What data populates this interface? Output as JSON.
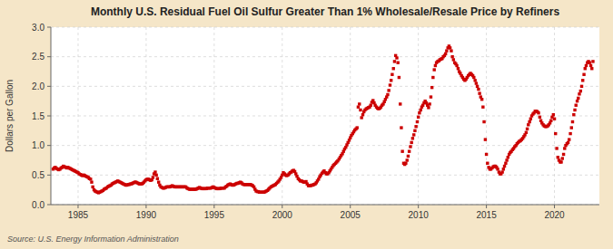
{
  "chart_data": {
    "type": "scatter",
    "title": "Monthly U.S. Residual Fuel Oil Sulfur Greater Than 1% Wholesale/Resale Price by Refiners",
    "ylabel": "Dollars per Gallon",
    "annotation": "Source: U.S. Energy Information Administration",
    "color": "#CC0000",
    "marker": "square",
    "grid": true,
    "xlim": [
      1983.0,
      2023.3
    ],
    "xticks": [
      1985,
      1990,
      1995,
      2000,
      2005,
      2010,
      2015,
      2020
    ],
    "ylim": [
      0.0,
      3.0
    ],
    "yticks": [
      {
        "value": 0.0,
        "label": "0.0"
      },
      0.5,
      {
        "value": 1.0,
        "label": "1.0"
      },
      1.5,
      {
        "value": 2.0,
        "label": "2.0"
      },
      2.5,
      {
        "value": 3.0,
        "label": "3.0"
      }
    ],
    "x": [
      1983.17,
      1983.25,
      1983.33,
      1983.42,
      1983.5,
      1983.58,
      1983.67,
      1983.75,
      1983.83,
      1983.92,
      1984.0,
      1984.08,
      1984.17,
      1984.25,
      1984.33,
      1984.42,
      1984.5,
      1984.58,
      1984.67,
      1984.75,
      1984.83,
      1984.92,
      1985.0,
      1985.08,
      1985.17,
      1985.25,
      1985.33,
      1985.42,
      1985.5,
      1985.58,
      1985.67,
      1985.75,
      1985.83,
      1985.92,
      1986.0,
      1986.08,
      1986.17,
      1986.25,
      1986.33,
      1986.42,
      1986.5,
      1986.58,
      1986.67,
      1986.75,
      1986.83,
      1986.92,
      1987.0,
      1987.08,
      1987.17,
      1987.25,
      1987.33,
      1987.42,
      1987.5,
      1987.58,
      1987.67,
      1987.75,
      1987.83,
      1987.92,
      1988.0,
      1988.08,
      1988.17,
      1988.25,
      1988.33,
      1988.42,
      1988.5,
      1988.58,
      1988.67,
      1988.75,
      1988.83,
      1988.92,
      1989.0,
      1989.08,
      1989.17,
      1989.25,
      1989.33,
      1989.42,
      1989.5,
      1989.58,
      1989.67,
      1989.75,
      1989.83,
      1989.92,
      1990.0,
      1990.08,
      1990.17,
      1990.25,
      1990.33,
      1990.42,
      1990.5,
      1990.58,
      1990.67,
      1990.75,
      1990.83,
      1990.92,
      1991.0,
      1991.08,
      1991.17,
      1991.25,
      1991.33,
      1991.42,
      1991.5,
      1991.58,
      1991.67,
      1991.75,
      1991.83,
      1991.92,
      1992.0,
      1992.08,
      1992.17,
      1992.25,
      1992.33,
      1992.42,
      1992.5,
      1992.58,
      1992.67,
      1992.75,
      1992.83,
      1992.92,
      1993.0,
      1993.08,
      1993.17,
      1993.25,
      1993.33,
      1993.42,
      1993.5,
      1993.58,
      1993.67,
      1993.75,
      1993.83,
      1993.92,
      1994.0,
      1994.08,
      1994.17,
      1994.25,
      1994.33,
      1994.42,
      1994.5,
      1994.58,
      1994.67,
      1994.75,
      1994.83,
      1994.92,
      1995.0,
      1995.08,
      1995.17,
      1995.25,
      1995.33,
      1995.42,
      1995.5,
      1995.58,
      1995.67,
      1995.75,
      1995.83,
      1995.92,
      1996.0,
      1996.08,
      1996.17,
      1996.25,
      1996.33,
      1996.42,
      1996.5,
      1996.58,
      1996.67,
      1996.75,
      1996.83,
      1996.92,
      1997.0,
      1997.08,
      1997.17,
      1997.25,
      1997.33,
      1997.42,
      1997.5,
      1997.58,
      1997.67,
      1997.75,
      1997.83,
      1997.92,
      1998.0,
      1998.08,
      1998.17,
      1998.25,
      1998.33,
      1998.42,
      1998.5,
      1998.58,
      1998.67,
      1998.75,
      1998.83,
      1998.92,
      1999.0,
      1999.08,
      1999.17,
      1999.25,
      1999.33,
      1999.42,
      1999.5,
      1999.58,
      1999.67,
      1999.75,
      1999.83,
      1999.92,
      2000.0,
      2000.08,
      2000.17,
      2000.25,
      2000.33,
      2000.42,
      2000.5,
      2000.58,
      2000.67,
      2000.75,
      2000.83,
      2000.92,
      2001.0,
      2001.08,
      2001.17,
      2001.25,
      2001.33,
      2001.42,
      2001.5,
      2001.58,
      2001.67,
      2001.75,
      2001.83,
      2001.92,
      2002.0,
      2002.08,
      2002.17,
      2002.25,
      2002.33,
      2002.42,
      2002.5,
      2002.58,
      2002.67,
      2002.75,
      2002.83,
      2002.92,
      2003.0,
      2003.08,
      2003.17,
      2003.25,
      2003.33,
      2003.42,
      2003.5,
      2003.58,
      2003.67,
      2003.75,
      2003.83,
      2003.92,
      2004.0,
      2004.08,
      2004.17,
      2004.25,
      2004.33,
      2004.42,
      2004.5,
      2004.58,
      2004.67,
      2004.75,
      2004.83,
      2004.92,
      2005.0,
      2005.08,
      2005.17,
      2005.25,
      2005.33,
      2005.42,
      2005.5,
      2005.58,
      2005.67,
      2005.75,
      2005.83,
      2005.92,
      2006.0,
      2006.08,
      2006.17,
      2006.25,
      2006.33,
      2006.42,
      2006.5,
      2006.58,
      2006.67,
      2006.75,
      2006.83,
      2006.92,
      2007.0,
      2007.08,
      2007.17,
      2007.25,
      2007.33,
      2007.42,
      2007.5,
      2007.58,
      2007.67,
      2007.75,
      2007.83,
      2007.92,
      2008.0,
      2008.08,
      2008.17,
      2008.25,
      2008.33,
      2008.42,
      2008.5,
      2008.58,
      2008.67,
      2008.75,
      2008.83,
      2008.92,
      2009.0,
      2009.08,
      2009.17,
      2009.25,
      2009.33,
      2009.42,
      2009.5,
      2009.58,
      2009.67,
      2009.75,
      2009.83,
      2009.92,
      2010.0,
      2010.08,
      2010.17,
      2010.25,
      2010.33,
      2010.42,
      2010.5,
      2010.58,
      2010.67,
      2010.75,
      2010.83,
      2010.92,
      2011.0,
      2011.08,
      2011.17,
      2011.25,
      2011.33,
      2011.42,
      2011.5,
      2011.58,
      2011.67,
      2011.75,
      2011.83,
      2011.92,
      2012.0,
      2012.08,
      2012.17,
      2012.25,
      2012.33,
      2012.42,
      2012.5,
      2012.58,
      2012.67,
      2012.75,
      2012.83,
      2012.92,
      2013.0,
      2013.08,
      2013.17,
      2013.25,
      2013.33,
      2013.42,
      2013.5,
      2013.58,
      2013.67,
      2013.75,
      2013.83,
      2013.92,
      2014.0,
      2014.08,
      2014.17,
      2014.25,
      2014.33,
      2014.42,
      2014.5,
      2014.58,
      2014.67,
      2014.75,
      2014.83,
      2014.92,
      2015.0,
      2015.08,
      2015.17,
      2015.25,
      2015.33,
      2015.42,
      2015.5,
      2015.58,
      2015.67,
      2015.75,
      2015.83,
      2015.92,
      2016.0,
      2016.08,
      2016.17,
      2016.25,
      2016.33,
      2016.42,
      2016.5,
      2016.58,
      2016.67,
      2016.75,
      2016.83,
      2016.92,
      2017.0,
      2017.08,
      2017.17,
      2017.25,
      2017.33,
      2017.42,
      2017.5,
      2017.58,
      2017.67,
      2017.75,
      2017.83,
      2017.92,
      2018.0,
      2018.08,
      2018.17,
      2018.25,
      2018.33,
      2018.42,
      2018.5,
      2018.58,
      2018.67,
      2018.75,
      2018.83,
      2018.92,
      2019.0,
      2019.08,
      2019.17,
      2019.25,
      2019.33,
      2019.42,
      2019.5,
      2019.58,
      2019.67,
      2019.75,
      2019.83,
      2019.92,
      2020.0,
      2020.08,
      2020.17,
      2020.25,
      2020.33,
      2020.42,
      2020.5,
      2020.58,
      2020.67,
      2020.75,
      2020.83,
      2020.92,
      2021.0,
      2021.08,
      2021.17,
      2021.25,
      2021.33,
      2021.42,
      2021.5,
      2021.58,
      2021.67,
      2021.75,
      2021.83,
      2021.92,
      2022.0,
      2022.08,
      2022.17,
      2022.25,
      2022.33,
      2022.42,
      2022.5,
      2022.58,
      2022.67,
      2022.75,
      2022.83
    ],
    "values": [
      0.6,
      0.62,
      0.63,
      0.61,
      0.6,
      0.59,
      0.6,
      0.62,
      0.63,
      0.65,
      0.64,
      0.63,
      0.62,
      0.63,
      0.62,
      0.61,
      0.6,
      0.59,
      0.58,
      0.57,
      0.56,
      0.55,
      0.54,
      0.52,
      0.51,
      0.5,
      0.49,
      0.5,
      0.49,
      0.48,
      0.47,
      0.46,
      0.44,
      0.43,
      0.38,
      0.3,
      0.25,
      0.23,
      0.22,
      0.21,
      0.2,
      0.21,
      0.22,
      0.23,
      0.24,
      0.26,
      0.27,
      0.28,
      0.3,
      0.31,
      0.32,
      0.33,
      0.35,
      0.36,
      0.37,
      0.38,
      0.39,
      0.4,
      0.39,
      0.38,
      0.37,
      0.36,
      0.35,
      0.34,
      0.33,
      0.33,
      0.34,
      0.34,
      0.35,
      0.35,
      0.36,
      0.37,
      0.38,
      0.38,
      0.37,
      0.36,
      0.35,
      0.35,
      0.35,
      0.36,
      0.38,
      0.4,
      0.42,
      0.43,
      0.43,
      0.42,
      0.41,
      0.42,
      0.46,
      0.52,
      0.55,
      0.5,
      0.44,
      0.38,
      0.33,
      0.3,
      0.29,
      0.28,
      0.28,
      0.29,
      0.3,
      0.3,
      0.3,
      0.3,
      0.31,
      0.32,
      0.31,
      0.3,
      0.3,
      0.3,
      0.3,
      0.3,
      0.3,
      0.3,
      0.3,
      0.3,
      0.3,
      0.3,
      0.28,
      0.27,
      0.26,
      0.26,
      0.26,
      0.26,
      0.26,
      0.26,
      0.26,
      0.27,
      0.28,
      0.29,
      0.28,
      0.27,
      0.27,
      0.27,
      0.27,
      0.27,
      0.28,
      0.28,
      0.28,
      0.28,
      0.29,
      0.3,
      0.29,
      0.28,
      0.27,
      0.27,
      0.27,
      0.27,
      0.28,
      0.28,
      0.28,
      0.28,
      0.3,
      0.31,
      0.33,
      0.34,
      0.35,
      0.34,
      0.33,
      0.33,
      0.34,
      0.35,
      0.36,
      0.36,
      0.37,
      0.38,
      0.37,
      0.35,
      0.34,
      0.34,
      0.34,
      0.34,
      0.34,
      0.34,
      0.34,
      0.33,
      0.32,
      0.3,
      0.26,
      0.23,
      0.22,
      0.22,
      0.21,
      0.21,
      0.21,
      0.21,
      0.21,
      0.22,
      0.23,
      0.24,
      0.26,
      0.28,
      0.3,
      0.31,
      0.32,
      0.33,
      0.34,
      0.36,
      0.38,
      0.4,
      0.43,
      0.46,
      0.5,
      0.54,
      0.52,
      0.5,
      0.49,
      0.5,
      0.52,
      0.54,
      0.55,
      0.57,
      0.58,
      0.56,
      0.52,
      0.48,
      0.44,
      0.42,
      0.4,
      0.4,
      0.39,
      0.38,
      0.38,
      0.39,
      0.35,
      0.32,
      0.32,
      0.32,
      0.33,
      0.33,
      0.34,
      0.35,
      0.37,
      0.4,
      0.43,
      0.47,
      0.5,
      0.53,
      0.55,
      0.57,
      0.54,
      0.52,
      0.52,
      0.54,
      0.57,
      0.6,
      0.63,
      0.66,
      0.68,
      0.7,
      0.72,
      0.74,
      0.77,
      0.8,
      0.83,
      0.86,
      0.9,
      0.94,
      0.97,
      1.01,
      1.05,
      1.09,
      1.13,
      1.17,
      1.2,
      1.23,
      1.26,
      1.28,
      1.3,
      1.65,
      1.7,
      1.6,
      1.47,
      1.52,
      1.57,
      1.6,
      1.62,
      1.63,
      1.64,
      1.65,
      1.68,
      1.73,
      1.76,
      1.72,
      1.68,
      1.65,
      1.63,
      1.62,
      1.63,
      1.65,
      1.68,
      1.7,
      1.74,
      1.78,
      1.82,
      1.86,
      1.93,
      2.02,
      2.1,
      2.2,
      2.3,
      2.42,
      2.52,
      2.48,
      2.4,
      2.15,
      1.7,
      1.3,
      0.9,
      0.7,
      0.68,
      0.7,
      0.75,
      0.82,
      0.9,
      0.98,
      1.05,
      1.12,
      1.18,
      1.25,
      1.32,
      1.4,
      1.48,
      1.55,
      1.6,
      1.65,
      1.68,
      1.72,
      1.75,
      1.72,
      1.68,
      1.64,
      1.7,
      1.82,
      1.98,
      2.15,
      2.28,
      2.35,
      2.4,
      2.42,
      2.43,
      2.45,
      2.46,
      2.47,
      2.5,
      2.52,
      2.55,
      2.6,
      2.65,
      2.68,
      2.65,
      2.6,
      2.5,
      2.45,
      2.4,
      2.38,
      2.35,
      2.3,
      2.25,
      2.22,
      2.18,
      2.15,
      2.12,
      2.1,
      2.12,
      2.15,
      2.18,
      2.2,
      2.22,
      2.2,
      2.18,
      2.15,
      2.1,
      2.05,
      2.0,
      1.95,
      1.88,
      1.82,
      1.78,
      1.65,
      1.4,
      1.1,
      0.85,
      0.7,
      0.63,
      0.6,
      0.6,
      0.62,
      0.64,
      0.65,
      0.65,
      0.63,
      0.6,
      0.55,
      0.52,
      0.52,
      0.55,
      0.6,
      0.65,
      0.7,
      0.75,
      0.8,
      0.85,
      0.88,
      0.9,
      0.93,
      0.95,
      0.98,
      1.0,
      1.03,
      1.05,
      1.07,
      1.08,
      1.1,
      1.12,
      1.15,
      1.18,
      1.22,
      1.28,
      1.35,
      1.4,
      1.45,
      1.5,
      1.53,
      1.55,
      1.58,
      1.58,
      1.57,
      1.55,
      1.48,
      1.42,
      1.38,
      1.35,
      1.33,
      1.32,
      1.32,
      1.33,
      1.35,
      1.38,
      1.42,
      1.48,
      1.52,
      1.45,
      1.2,
      0.95,
      0.8,
      0.75,
      0.72,
      0.72,
      0.78,
      0.85,
      0.95,
      1.0,
      1.03,
      1.05,
      1.1,
      1.2,
      1.3,
      1.4,
      1.52,
      1.6,
      1.68,
      1.75,
      1.8,
      1.87,
      1.92,
      2.0,
      2.1,
      2.2,
      2.3,
      2.35,
      2.4,
      2.42,
      2.4,
      2.35,
      2.3,
      2.42
    ]
  }
}
